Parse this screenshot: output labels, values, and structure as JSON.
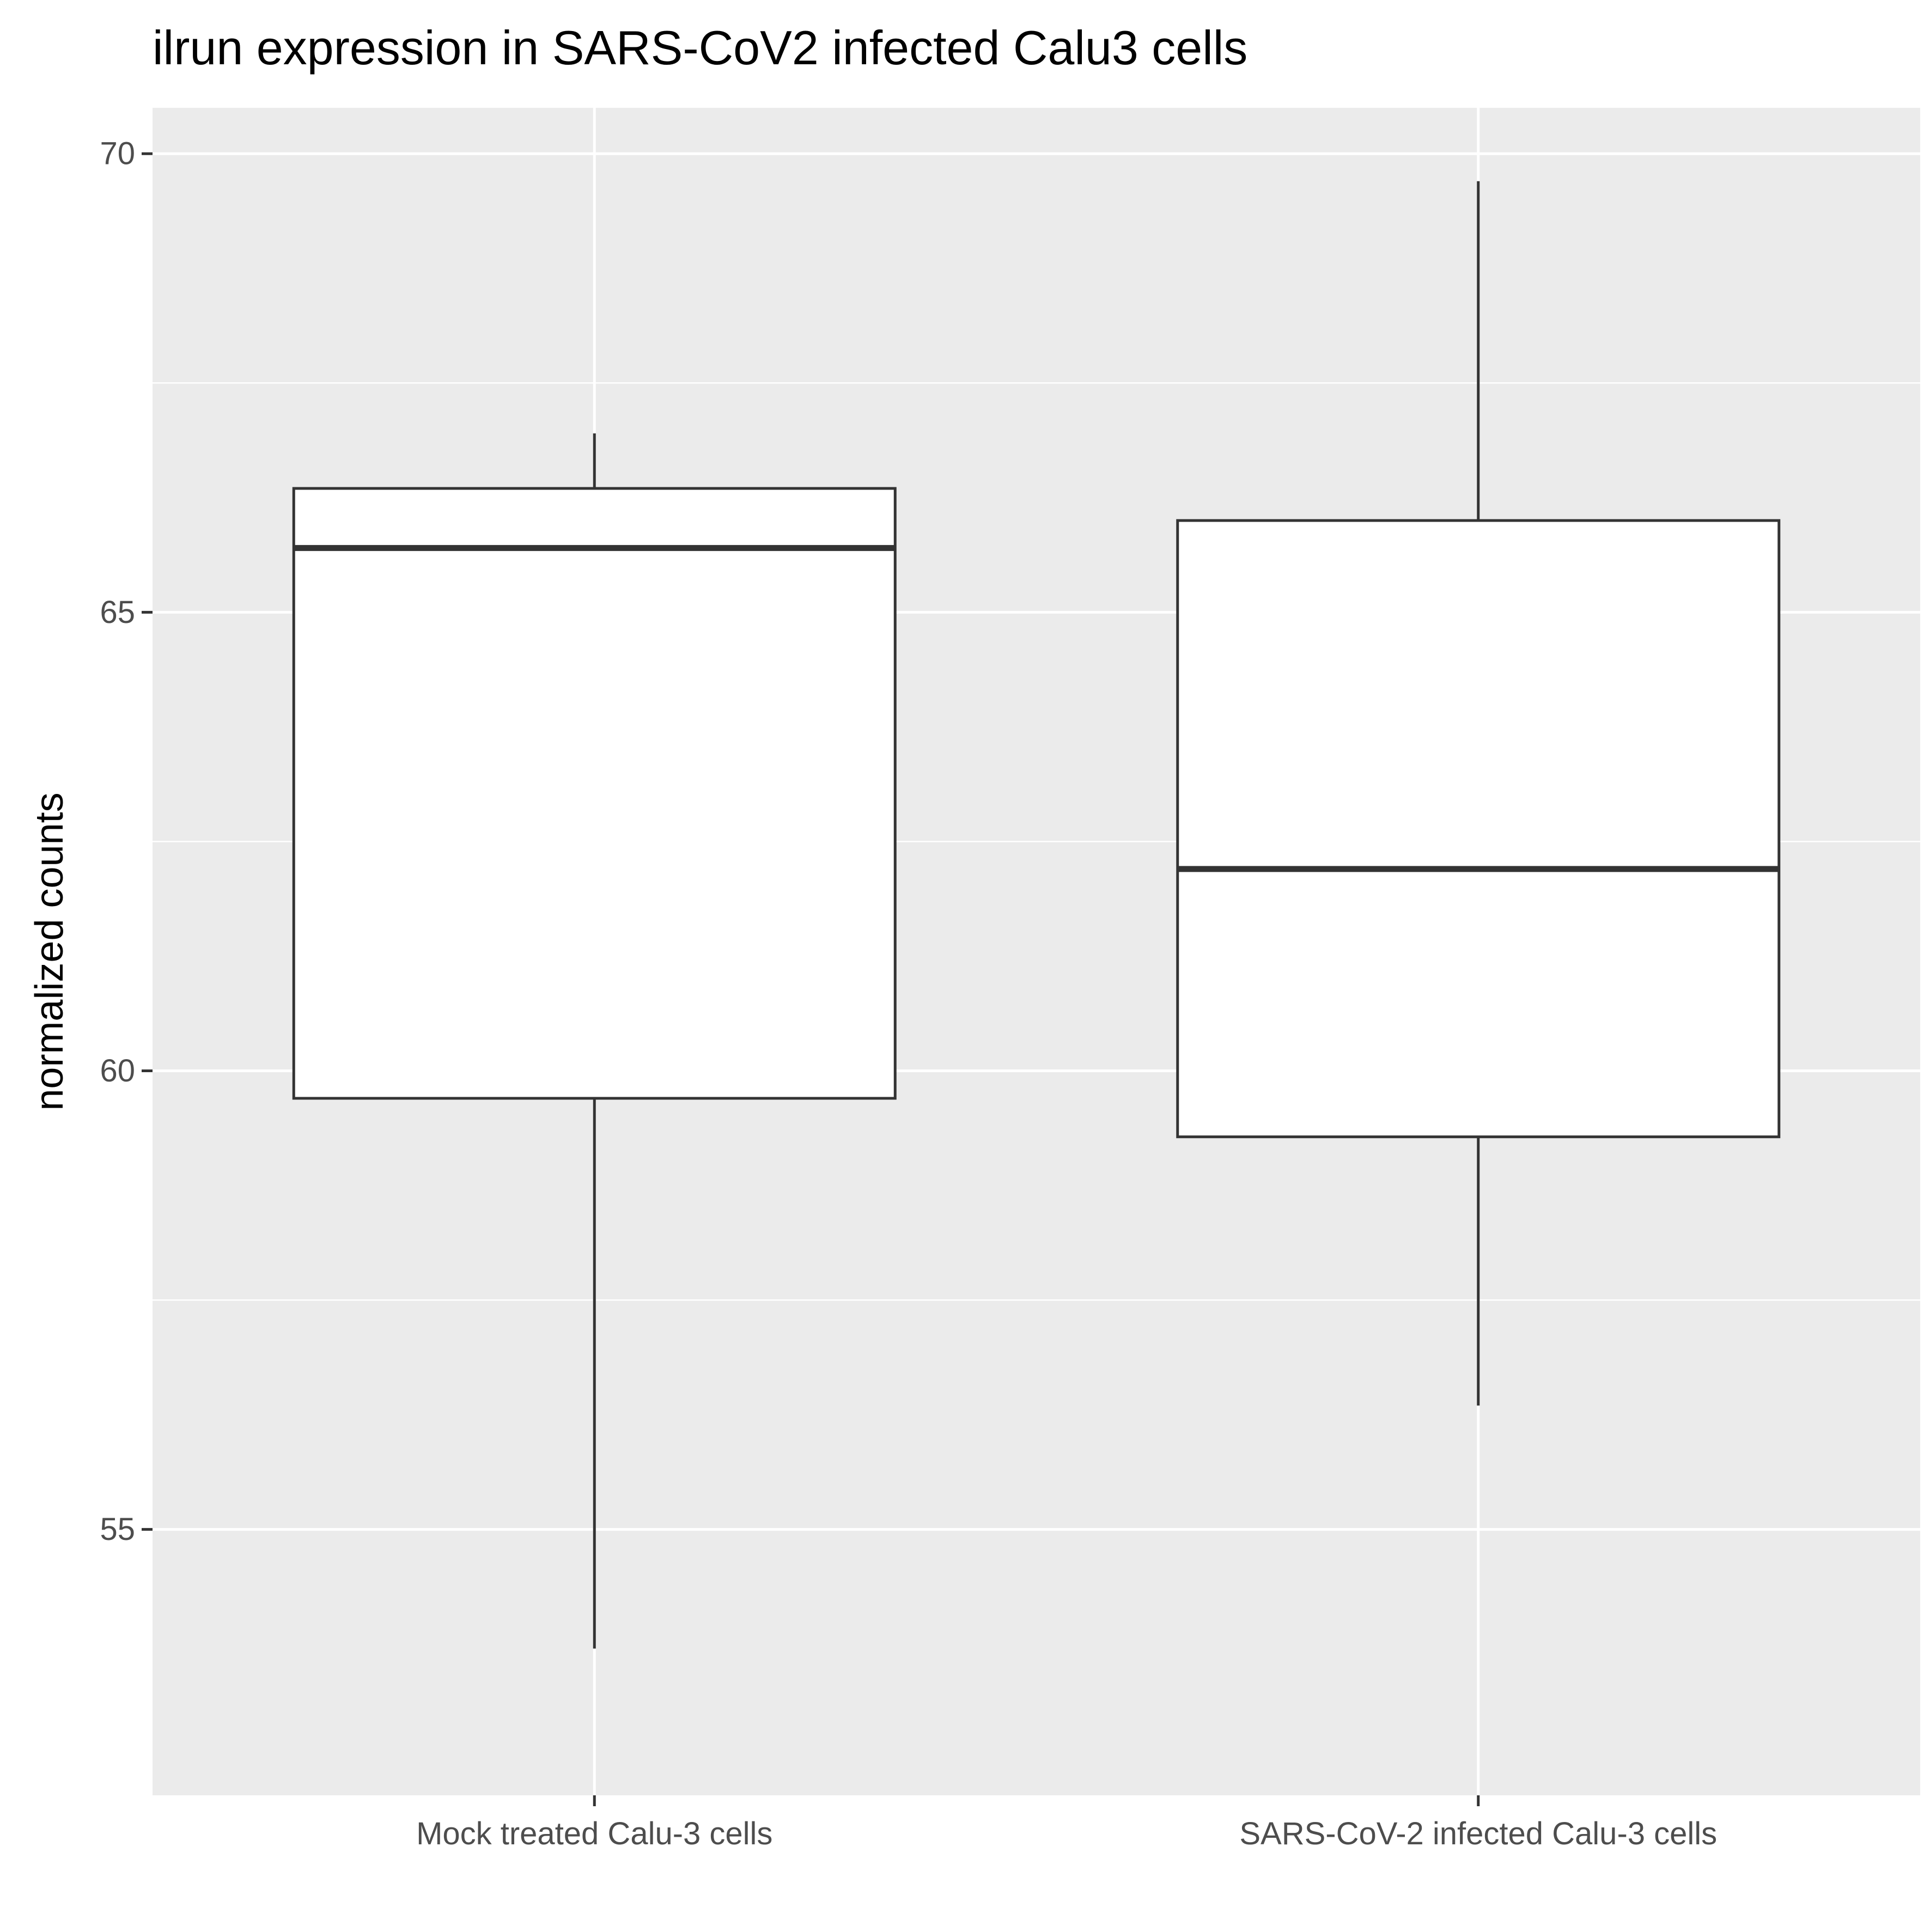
{
  "chart_data": {
    "type": "box",
    "title": "ilrun expression in SARS-CoV2 infected Calu3 cells",
    "xlabel": "",
    "ylabel": "normalized counts",
    "ylim": [
      52.1,
      70.5
    ],
    "yticks": [
      55,
      60,
      65,
      70
    ],
    "ytick_labels": [
      "55",
      "60",
      "65",
      "70"
    ],
    "grid": true,
    "categories": [
      "Mock treated Calu-3 cells",
      "SARS-CoV-2 infected Calu-3 cells"
    ],
    "boxes": [
      {
        "category": "Mock treated Calu-3 cells",
        "whisker_low": 53.7,
        "q1": 59.7,
        "median": 65.7,
        "q3": 66.35,
        "whisker_high": 66.95
      },
      {
        "category": "SARS-CoV-2 infected Calu-3 cells",
        "whisker_low": 56.35,
        "q1": 59.28,
        "median": 62.2,
        "q3": 66.0,
        "whisker_high": 69.7
      }
    ],
    "colors": {
      "panel": "#EBEBEB",
      "grid_major": "#FFFFFF",
      "box_fill": "#FFFFFF",
      "box_line": "#333333",
      "tick_text": "#4D4D4D",
      "title_text": "#000000"
    }
  }
}
